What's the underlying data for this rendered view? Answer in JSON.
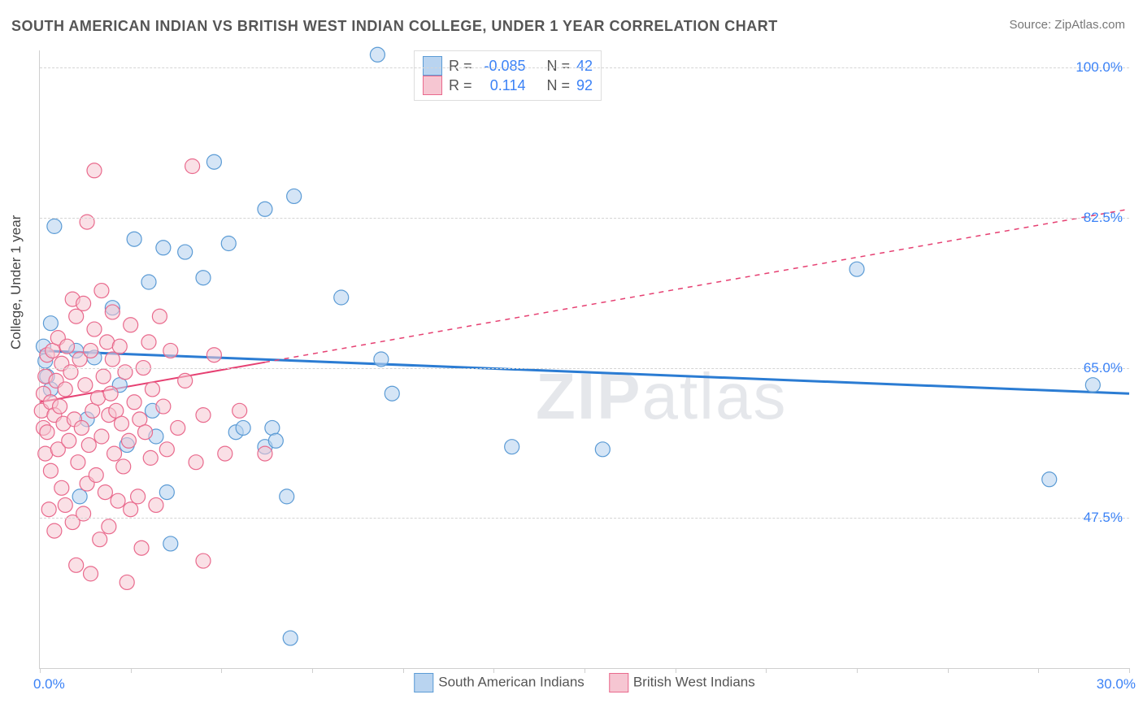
{
  "title": "SOUTH AMERICAN INDIAN VS BRITISH WEST INDIAN COLLEGE, UNDER 1 YEAR CORRELATION CHART",
  "source": "Source: ZipAtlas.com",
  "ylabel": "College, Under 1 year",
  "watermark_bold": "ZIP",
  "watermark_rest": "atlas",
  "chart": {
    "type": "scatter",
    "xlim": [
      0,
      30
    ],
    "ylim": [
      30,
      102
    ],
    "xticks": [
      0,
      2.5,
      5,
      7.5,
      10,
      12.5,
      15,
      17.5,
      20,
      22.5,
      25,
      27.5,
      30
    ],
    "yticks": [
      47.5,
      65.0,
      82.5,
      100.0
    ],
    "ytick_labels": [
      "47.5%",
      "65.0%",
      "82.5%",
      "100.0%"
    ],
    "xlim_labels": [
      "0.0%",
      "30.0%"
    ],
    "grid_color": "#d5d5d5",
    "background_color": "#ffffff",
    "axis_color": "#cfcfcf"
  },
  "series": [
    {
      "id": "south_american",
      "label": "South American Indians",
      "marker_fill": "#b9d4f0",
      "marker_stroke": "#5b9bd5",
      "line_color": "#2b7cd3",
      "line_style": "solid",
      "line_width": 3,
      "marker_size": 9,
      "fill_opacity": 0.6,
      "fit": {
        "x1": 0,
        "y1": 67.0,
        "x2": 30,
        "y2": 62.0
      },
      "points": [
        [
          0.1,
          67.5
        ],
        [
          0.15,
          65.8
        ],
        [
          0.2,
          64.0
        ],
        [
          0.3,
          70.2
        ],
        [
          0.3,
          62.5
        ],
        [
          0.4,
          81.5
        ],
        [
          1.0,
          67.0
        ],
        [
          1.1,
          50.0
        ],
        [
          1.3,
          59.0
        ],
        [
          1.5,
          66.2
        ],
        [
          2.0,
          72.0
        ],
        [
          2.2,
          63.0
        ],
        [
          2.4,
          56.0
        ],
        [
          2.6,
          80.0
        ],
        [
          3.0,
          75.0
        ],
        [
          3.1,
          60.0
        ],
        [
          3.2,
          57.0
        ],
        [
          3.4,
          79.0
        ],
        [
          3.5,
          50.5
        ],
        [
          3.6,
          44.5
        ],
        [
          4.0,
          78.5
        ],
        [
          4.5,
          75.5
        ],
        [
          4.8,
          89.0
        ],
        [
          5.2,
          79.5
        ],
        [
          5.4,
          57.5
        ],
        [
          5.6,
          58.0
        ],
        [
          6.2,
          83.5
        ],
        [
          6.2,
          55.8
        ],
        [
          6.4,
          58.0
        ],
        [
          6.5,
          56.5
        ],
        [
          6.8,
          50.0
        ],
        [
          6.9,
          33.5
        ],
        [
          7.0,
          85.0
        ],
        [
          8.3,
          73.2
        ],
        [
          9.3,
          101.5
        ],
        [
          9.4,
          66.0
        ],
        [
          9.7,
          62.0
        ],
        [
          13.0,
          55.8
        ],
        [
          15.5,
          55.5
        ],
        [
          22.5,
          76.5
        ],
        [
          27.8,
          52.0
        ],
        [
          29.0,
          63.0
        ]
      ],
      "R": "-0.085",
      "N": "42"
    },
    {
      "id": "british_west",
      "label": "British West Indians",
      "marker_fill": "#f6c6d2",
      "marker_stroke": "#e96a8d",
      "line_color": "#e64072",
      "line_style_solid_until_x": 6.2,
      "line_style_after": "dashed",
      "line_width": 2,
      "marker_size": 9,
      "fill_opacity": 0.55,
      "fit": {
        "x1": 0,
        "y1": 61.0,
        "x2": 30,
        "y2": 83.5
      },
      "points": [
        [
          0.05,
          60.0
        ],
        [
          0.1,
          58.0
        ],
        [
          0.1,
          62.0
        ],
        [
          0.15,
          55.0
        ],
        [
          0.15,
          64.0
        ],
        [
          0.2,
          66.5
        ],
        [
          0.2,
          57.5
        ],
        [
          0.25,
          48.5
        ],
        [
          0.3,
          61.0
        ],
        [
          0.3,
          53.0
        ],
        [
          0.35,
          67.0
        ],
        [
          0.4,
          59.5
        ],
        [
          0.4,
          46.0
        ],
        [
          0.45,
          63.5
        ],
        [
          0.5,
          68.5
        ],
        [
          0.5,
          55.5
        ],
        [
          0.55,
          60.5
        ],
        [
          0.6,
          51.0
        ],
        [
          0.6,
          65.5
        ],
        [
          0.65,
          58.5
        ],
        [
          0.7,
          62.5
        ],
        [
          0.7,
          49.0
        ],
        [
          0.75,
          67.5
        ],
        [
          0.8,
          56.5
        ],
        [
          0.85,
          64.5
        ],
        [
          0.9,
          73.0
        ],
        [
          0.9,
          47.0
        ],
        [
          0.95,
          59.0
        ],
        [
          1.0,
          71.0
        ],
        [
          1.0,
          42.0
        ],
        [
          1.05,
          54.0
        ],
        [
          1.1,
          66.0
        ],
        [
          1.15,
          58.0
        ],
        [
          1.2,
          72.5
        ],
        [
          1.2,
          48.0
        ],
        [
          1.25,
          63.0
        ],
        [
          1.3,
          51.5
        ],
        [
          1.3,
          82.0
        ],
        [
          1.35,
          56.0
        ],
        [
          1.4,
          67.0
        ],
        [
          1.4,
          41.0
        ],
        [
          1.45,
          60.0
        ],
        [
          1.5,
          69.5
        ],
        [
          1.5,
          88.0
        ],
        [
          1.55,
          52.5
        ],
        [
          1.6,
          61.5
        ],
        [
          1.65,
          45.0
        ],
        [
          1.7,
          74.0
        ],
        [
          1.7,
          57.0
        ],
        [
          1.75,
          64.0
        ],
        [
          1.8,
          50.5
        ],
        [
          1.85,
          68.0
        ],
        [
          1.9,
          59.5
        ],
        [
          1.9,
          46.5
        ],
        [
          1.95,
          62.0
        ],
        [
          2.0,
          71.5
        ],
        [
          2.0,
          66.0
        ],
        [
          2.05,
          55.0
        ],
        [
          2.1,
          60.0
        ],
        [
          2.15,
          49.5
        ],
        [
          2.2,
          67.5
        ],
        [
          2.25,
          58.5
        ],
        [
          2.3,
          53.5
        ],
        [
          2.35,
          64.5
        ],
        [
          2.4,
          40.0
        ],
        [
          2.45,
          56.5
        ],
        [
          2.5,
          48.5
        ],
        [
          2.5,
          70.0
        ],
        [
          2.6,
          61.0
        ],
        [
          2.7,
          50.0
        ],
        [
          2.75,
          59.0
        ],
        [
          2.8,
          44.0
        ],
        [
          2.85,
          65.0
        ],
        [
          2.9,
          57.5
        ],
        [
          3.0,
          68.0
        ],
        [
          3.05,
          54.5
        ],
        [
          3.1,
          62.5
        ],
        [
          3.2,
          49.0
        ],
        [
          3.3,
          71.0
        ],
        [
          3.4,
          60.5
        ],
        [
          3.5,
          55.5
        ],
        [
          3.6,
          67.0
        ],
        [
          3.8,
          58.0
        ],
        [
          4.0,
          63.5
        ],
        [
          4.2,
          88.5
        ],
        [
          4.3,
          54.0
        ],
        [
          4.5,
          42.5
        ],
        [
          4.5,
          59.5
        ],
        [
          4.8,
          66.5
        ],
        [
          5.1,
          55.0
        ],
        [
          5.5,
          60.0
        ],
        [
          6.2,
          55.0
        ]
      ],
      "R": "0.114",
      "N": "92"
    }
  ],
  "stats_box": {
    "rows": [
      {
        "series": 0,
        "R_label": "R =",
        "N_label": "N ="
      },
      {
        "series": 1,
        "R_label": "R =",
        "N_label": "N ="
      }
    ]
  }
}
